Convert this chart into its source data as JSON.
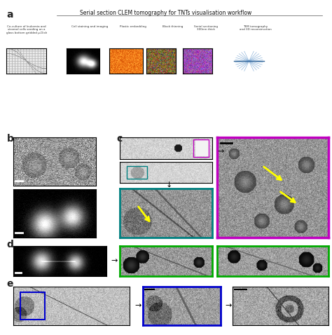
{
  "title": "Serial section CLEM tomography for TNTs visualisation workflow",
  "panel_a_label": "a",
  "panel_b_label": "b",
  "panel_c_label": "c",
  "panel_d_label": "d",
  "panel_e_label": "e",
  "workflow_labels": [
    "Co-culture of leukemia and\nstromal cells seeding on a\nglass bottom gridded μ-Dish",
    "Cell staining and imaging",
    "Plastic embedding",
    "Block thinning",
    "Serial sectioning\n300nm thick",
    "TEM tomography\nand 3D reconstruction"
  ],
  "bg_color": "#ffffff",
  "border_magenta": "#c000c0",
  "border_green_teal": "#008080",
  "border_green": "#00aa00",
  "border_blue": "#0000cc",
  "yellow_arrow": "#ffff00",
  "text_color": "#333333",
  "label_color": "#222222"
}
